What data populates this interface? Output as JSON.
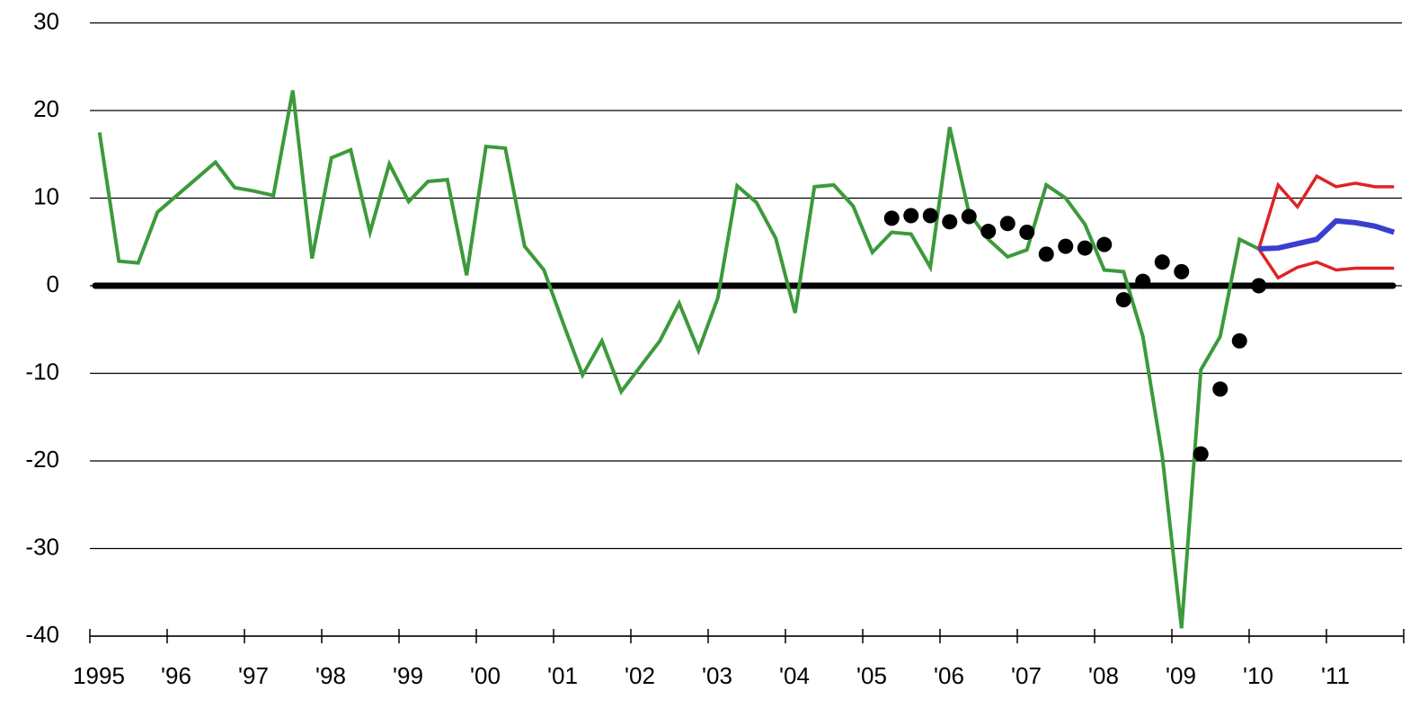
{
  "chart_data": {
    "type": "line",
    "xlim": [
      1995,
      2012
    ],
    "xticks": [
      1995,
      {
        "value": 1996,
        "label": "'96"
      },
      {
        "value": 1997,
        "label": "'97"
      },
      {
        "value": 1998,
        "label": "'98"
      },
      {
        "value": 1999,
        "label": "'99"
      },
      {
        "value": 2000,
        "label": "'00"
      },
      {
        "value": 2001,
        "label": "'01"
      },
      {
        "value": 2002,
        "label": "'02"
      },
      {
        "value": 2003,
        "label": "'03"
      },
      {
        "value": 2004,
        "label": "'04"
      },
      {
        "value": 2005,
        "label": "'05"
      },
      {
        "value": 2006,
        "label": "'06"
      },
      {
        "value": 2007,
        "label": "'07"
      },
      {
        "value": 2008,
        "label": "'08"
      },
      {
        "value": 2009,
        "label": "'09"
      },
      {
        "value": 2010,
        "label": "'10"
      },
      {
        "value": 2011,
        "label": "'11"
      }
    ],
    "ylim": [
      -40,
      30
    ],
    "yticks": [
      -40,
      -30,
      -20,
      -10,
      0,
      10,
      20,
      30
    ],
    "grid": true,
    "zero_line": true,
    "series": [
      {
        "color": "#3c9a3c",
        "mode": "line",
        "x": [
          1995.125,
          1995.375,
          1995.625,
          1995.875,
          1996.125,
          1996.375,
          1996.625,
          1996.875,
          1997.125,
          1997.375,
          1997.625,
          1997.875,
          1998.125,
          1998.375,
          1998.625,
          1998.875,
          1999.125,
          1999.375,
          1999.625,
          1999.875,
          2000.125,
          2000.375,
          2000.625,
          2000.875,
          2001.125,
          2001.375,
          2001.625,
          2001.875,
          2002.125,
          2002.375,
          2002.625,
          2002.875,
          2003.125,
          2003.375,
          2003.625,
          2003.875,
          2004.125,
          2004.375,
          2004.625,
          2004.875,
          2005.125,
          2005.375,
          2005.625,
          2005.875,
          2006.125,
          2006.375,
          2006.625,
          2006.875,
          2007.125,
          2007.375,
          2007.625,
          2007.875,
          2008.125,
          2008.375,
          2008.625,
          2008.875,
          2009.125,
          2009.375,
          2009.625,
          2009.875,
          2010.125
        ],
        "values": [
          17.5,
          2.8,
          2.6,
          8.4,
          10.3,
          12.2,
          14.1,
          11.2,
          10.8,
          10.3,
          22.3,
          3.1,
          14.6,
          15.5,
          6.1,
          13.9,
          9.6,
          11.9,
          12.1,
          1.2,
          15.9,
          15.7,
          4.5,
          1.8,
          -4.3,
          -10.2,
          -6.3,
          -12.1,
          -9.2,
          -6.3,
          -2.0,
          -7.4,
          -1.4,
          11.4,
          9.5,
          5.4,
          -3.1,
          11.3,
          11.5,
          9.1,
          3.8,
          6.1,
          5.9,
          2.1,
          18.1,
          8.3,
          5.3,
          3.3,
          4.1,
          11.5,
          10.0,
          7.0,
          1.8,
          1.6,
          -5.8,
          -19.4,
          -39.1,
          -9.6,
          -5.8,
          5.3,
          4.2
        ]
      },
      {
        "color": "#000000",
        "mode": "markers",
        "x": [
          2005.375,
          2005.625,
          2005.875,
          2006.125,
          2006.375,
          2006.625,
          2006.875,
          2007.125,
          2007.375,
          2007.625,
          2007.875,
          2008.125,
          2008.375,
          2008.625,
          2008.875,
          2009.125,
          2009.375,
          2009.625,
          2009.875,
          2010.125
        ],
        "values": [
          7.7,
          8.0,
          8.0,
          7.3,
          7.9,
          6.2,
          7.1,
          6.1,
          3.6,
          4.5,
          4.3,
          4.7,
          -1.6,
          0.5,
          2.7,
          1.6,
          -19.2,
          -11.8,
          -6.3,
          0.0
        ]
      },
      {
        "color": "#e02222",
        "mode": "line",
        "x": [
          2010.125,
          2010.375,
          2010.625,
          2010.875,
          2011.125,
          2011.375,
          2011.625,
          2011.875
        ],
        "values": [
          4.2,
          11.5,
          9.0,
          12.5,
          11.3,
          11.7,
          11.3,
          11.3
        ]
      },
      {
        "color": "#e02222",
        "mode": "line",
        "x": [
          2010.125,
          2010.375,
          2010.625,
          2010.875,
          2011.125,
          2011.375,
          2011.625,
          2011.875
        ],
        "values": [
          4.2,
          0.9,
          2.1,
          2.7,
          1.8,
          2.0,
          2.0,
          2.0
        ]
      },
      {
        "color": "#3a3fd0",
        "mode": "line",
        "x": [
          2010.125,
          2010.375,
          2010.625,
          2010.875,
          2011.125,
          2011.375,
          2011.625,
          2011.875
        ],
        "values": [
          4.2,
          4.3,
          4.8,
          5.3,
          7.4,
          7.2,
          6.8,
          6.1
        ]
      }
    ]
  }
}
